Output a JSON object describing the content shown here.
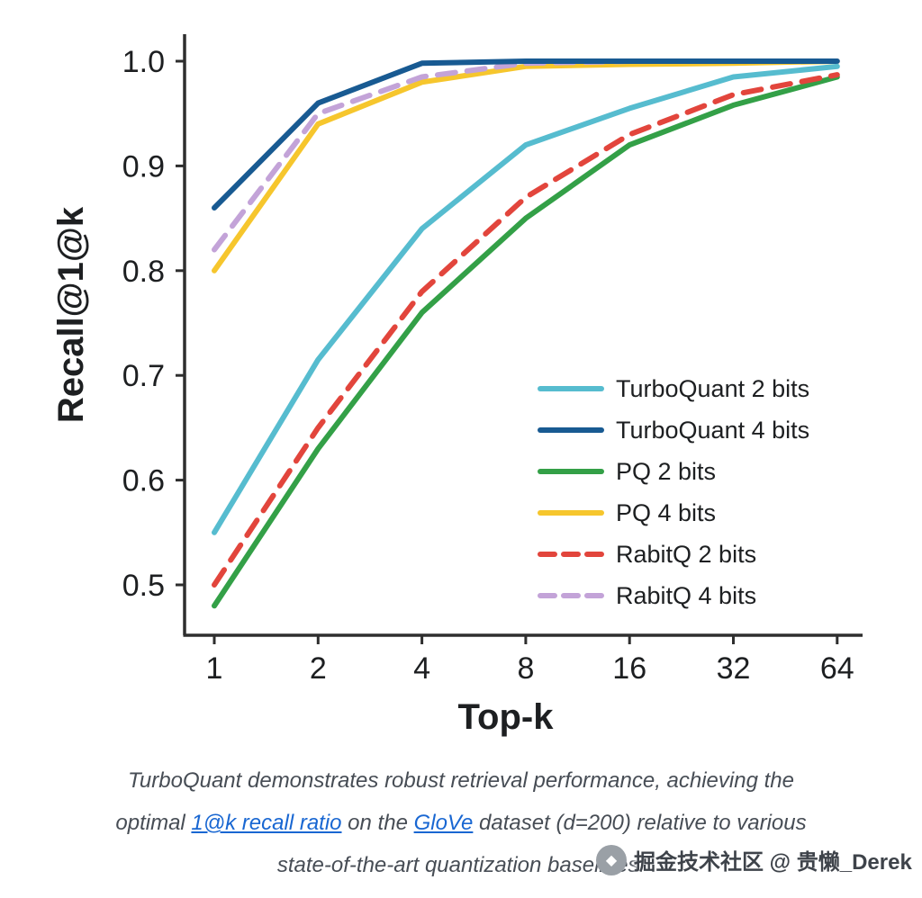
{
  "chart_data": {
    "type": "line",
    "title": "",
    "xlabel": "Top-k",
    "ylabel": "Recall@1@k",
    "x_scale": "log2",
    "x": [
      1,
      2,
      4,
      8,
      16,
      32,
      64
    ],
    "xticks": [
      "1",
      "2",
      "4",
      "8",
      "16",
      "32",
      "64"
    ],
    "yticks": [
      0.5,
      0.6,
      0.7,
      0.8,
      0.9,
      1.0
    ],
    "ylim": [
      0.45,
      1.02
    ],
    "grid": false,
    "legend_position": "inside lower right",
    "series": [
      {
        "name": "TurboQuant 2 bits",
        "color": "#56bccf",
        "style": "solid",
        "values": [
          0.55,
          0.715,
          0.84,
          0.92,
          0.955,
          0.985,
          0.995
        ]
      },
      {
        "name": "TurboQuant 4 bits",
        "color": "#185a92",
        "style": "solid",
        "values": [
          0.86,
          0.96,
          0.998,
          1.0,
          1.0,
          1.0,
          1.0
        ]
      },
      {
        "name": "PQ 2 bits",
        "color": "#33a047",
        "style": "solid",
        "values": [
          0.48,
          0.63,
          0.76,
          0.85,
          0.92,
          0.958,
          0.985
        ]
      },
      {
        "name": "PQ 4 bits",
        "color": "#f6c62d",
        "style": "solid",
        "values": [
          0.8,
          0.94,
          0.98,
          0.995,
          0.997,
          0.998,
          1.0
        ]
      },
      {
        "name": "RabitQ 2 bits",
        "color": "#e2453c",
        "style": "dashed",
        "values": [
          0.5,
          0.65,
          0.78,
          0.87,
          0.93,
          0.968,
          0.987
        ]
      },
      {
        "name": "RabitQ 4 bits",
        "color": "#c3a3d8",
        "style": "dashed",
        "values": [
          0.82,
          0.95,
          0.985,
          0.998,
          1.0,
          1.0,
          1.0
        ]
      }
    ],
    "draw_order": [
      3,
      5,
      1,
      2,
      4,
      0
    ]
  },
  "caption": {
    "line1": "TurboQuant demonstrates robust retrieval performance, achieving the",
    "line2_pre": "optimal ",
    "link1": "1@k recall ratio",
    "line2_mid": " on the ",
    "link2": "GloVe",
    "line2_post": " dataset (d=200) relative to various",
    "line3": "state-of-the-art quantization baselines."
  },
  "watermark": {
    "icon_glyph": "◆",
    "text": "掘金技术社区 @ 贵懒_Derek"
  }
}
